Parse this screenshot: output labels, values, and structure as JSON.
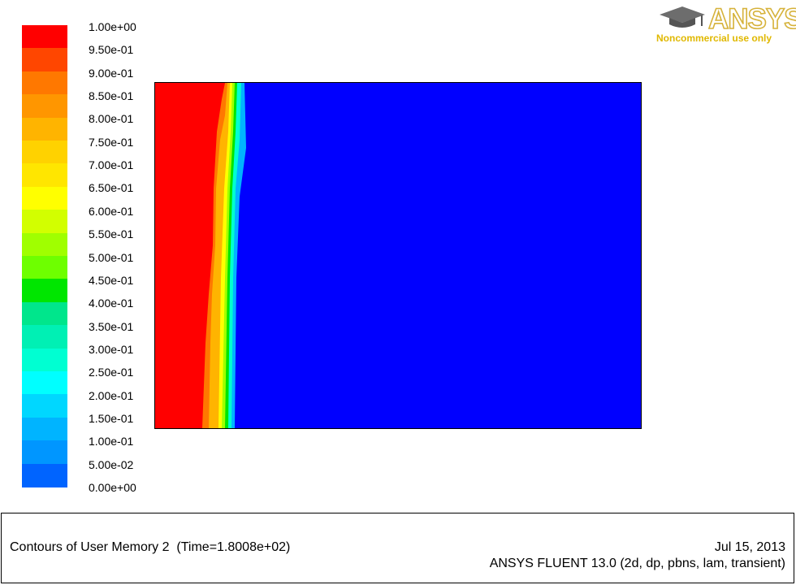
{
  "logo": {
    "brand": "ANSYS",
    "subtitle": "Noncommercial use only",
    "icon": "graduation-cap-icon"
  },
  "colorbar": {
    "tick_labels": [
      "1.00e+00",
      "9.50e-01",
      "9.00e-01",
      "8.50e-01",
      "8.00e-01",
      "7.50e-01",
      "7.00e-01",
      "6.50e-01",
      "6.00e-01",
      "5.50e-01",
      "5.00e-01",
      "4.50e-01",
      "4.00e-01",
      "3.50e-01",
      "3.00e-01",
      "2.50e-01",
      "2.00e-01",
      "1.50e-01",
      "1.00e-01",
      "5.00e-02",
      "0.00e+00"
    ],
    "colors": [
      "#ff0000",
      "#ff4600",
      "#ff7800",
      "#ff9600",
      "#ffb400",
      "#ffd200",
      "#ffe600",
      "#ffff00",
      "#d2ff00",
      "#a0ff00",
      "#6eff00",
      "#00e600",
      "#00e68c",
      "#00f0b4",
      "#00ffd2",
      "#00ffff",
      "#00d7ff",
      "#00b4ff",
      "#0096ff",
      "#0064ff",
      "#0000ff"
    ]
  },
  "contour": {
    "variable": "User Memory 2",
    "background_color": "#0000ff",
    "front_color": "#ff0000"
  },
  "footer": {
    "title": "Contours of User Memory 2  (Time=1.8008e+02)",
    "date": "Jul 15, 2013",
    "version": "ANSYS FLUENT 13.0 (2d, dp, pbns, lam, transient)"
  }
}
